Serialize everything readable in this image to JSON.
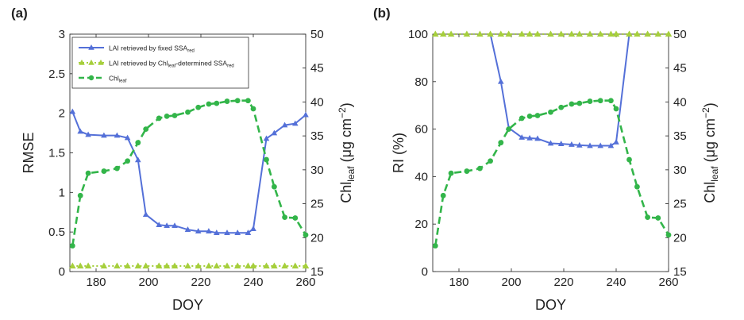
{
  "colors": {
    "blue": "#5470d8",
    "green_dash": "#33b54a",
    "green_tri": "#a6cf3c",
    "axis": "#333333"
  },
  "chart_data": [
    {
      "type": "line",
      "panel_label": "(a)",
      "xlabel": "DOY",
      "ylabel_left": "RMSE",
      "ylabel_right_main": "Chl",
      "ylabel_right_sub": "leaf",
      "ylabel_right_unit": " (μg cm",
      "ylabel_right_exp": "−2",
      "ylabel_right_close": ")",
      "xlim": [
        170,
        260
      ],
      "ylim_left": [
        0,
        3
      ],
      "ylim_right": [
        15,
        50
      ],
      "xticks": [
        180,
        200,
        220,
        240,
        260
      ],
      "yticks_left": [
        0,
        0.5,
        1,
        1.5,
        2,
        2.5,
        3
      ],
      "yticks_left_labels": [
        "0",
        "0.5",
        "1",
        "1.5",
        "2",
        "2.5",
        "3"
      ],
      "yticks_right": [
        15,
        20,
        25,
        30,
        35,
        40,
        45,
        50
      ],
      "legend": {
        "position": "top-left",
        "entries": [
          {
            "main": "LAI retrieved by fixed SSA",
            "sub": "red",
            "rest": ""
          },
          {
            "main": "LAI retrieved by Chl",
            "sub": "leaf",
            "rest": "-determined SSA",
            "sub2": "red"
          },
          {
            "main": "Chl",
            "sub": "leaf",
            "rest": ""
          }
        ]
      },
      "series": [
        {
          "name": "LAI retrieved by fixed SSAred",
          "axis": "left",
          "x": [
            171,
            174,
            177,
            183,
            188,
            192,
            196,
            199,
            204,
            207,
            210,
            215,
            219,
            223,
            226,
            230,
            234,
            238,
            240,
            245,
            248,
            252,
            256,
            260
          ],
          "y": [
            2.02,
            1.77,
            1.73,
            1.72,
            1.72,
            1.69,
            1.41,
            0.72,
            0.59,
            0.58,
            0.58,
            0.53,
            0.51,
            0.51,
            0.49,
            0.49,
            0.49,
            0.49,
            0.54,
            1.68,
            1.75,
            1.85,
            1.87,
            1.98
          ]
        },
        {
          "name": "LAI retrieved by Chleaf-determined SSAred",
          "axis": "left",
          "x": [
            171,
            174,
            177,
            183,
            188,
            192,
            196,
            199,
            204,
            207,
            210,
            215,
            219,
            223,
            226,
            230,
            234,
            238,
            240,
            245,
            248,
            252,
            256,
            260
          ],
          "y": [
            0.07,
            0.07,
            0.07,
            0.07,
            0.07,
            0.07,
            0.07,
            0.07,
            0.07,
            0.07,
            0.07,
            0.07,
            0.07,
            0.07,
            0.07,
            0.07,
            0.07,
            0.07,
            0.07,
            0.07,
            0.07,
            0.07,
            0.07,
            0.07
          ]
        },
        {
          "name": "Chleaf",
          "axis": "right",
          "x": [
            171,
            174,
            177,
            183,
            188,
            192,
            196,
            199,
            204,
            207,
            210,
            215,
            219,
            223,
            226,
            230,
            234,
            238,
            240,
            245,
            248,
            252,
            256,
            260
          ],
          "y": [
            18.8,
            26.2,
            29.5,
            29.8,
            30.2,
            31.3,
            34.0,
            36.0,
            37.6,
            37.9,
            38.0,
            38.5,
            39.2,
            39.7,
            39.8,
            40.1,
            40.2,
            40.2,
            39.0,
            31.5,
            27.5,
            23.0,
            22.9,
            20.4
          ]
        }
      ]
    },
    {
      "type": "line",
      "panel_label": "(b)",
      "xlabel": "DOY",
      "ylabel_left": "RI (%)",
      "ylabel_right_main": "Chl",
      "ylabel_right_sub": "leaf",
      "ylabel_right_unit": " (μg cm",
      "ylabel_right_exp": "−2",
      "ylabel_right_close": ")",
      "xlim": [
        170,
        260
      ],
      "ylim_left": [
        0,
        100
      ],
      "ylim_right": [
        15,
        50
      ],
      "xticks": [
        180,
        200,
        220,
        240,
        260
      ],
      "yticks_left": [
        0,
        20,
        40,
        60,
        80,
        100
      ],
      "yticks_left_labels": [
        "0",
        "20",
        "40",
        "60",
        "80",
        "100"
      ],
      "yticks_right": [
        15,
        20,
        25,
        30,
        35,
        40,
        45,
        50
      ],
      "series": [
        {
          "name": "LAI retrieved by fixed SSAred",
          "axis": "left",
          "x": [
            192,
            196,
            199,
            204,
            207,
            210,
            215,
            219,
            223,
            226,
            230,
            234,
            238,
            240,
            245
          ],
          "y": [
            100,
            80,
            60.5,
            56.5,
            56.2,
            56.0,
            54.0,
            53.8,
            53.5,
            53.2,
            53.0,
            53.0,
            53.0,
            54.5,
            100
          ]
        },
        {
          "name": "LAI retrieved by Chleaf-determined SSAred",
          "axis": "left",
          "x": [
            171,
            174,
            177,
            183,
            188,
            192,
            196,
            199,
            204,
            207,
            210,
            215,
            219,
            223,
            226,
            230,
            234,
            238,
            240,
            245,
            248,
            252,
            256,
            260
          ],
          "y": [
            100,
            100,
            100,
            100,
            100,
            100,
            100,
            100,
            100,
            100,
            100,
            100,
            100,
            100,
            100,
            100,
            100,
            100,
            100,
            100,
            100,
            100,
            100,
            100
          ]
        },
        {
          "name": "Chleaf",
          "axis": "right",
          "x": [
            171,
            174,
            177,
            183,
            188,
            192,
            196,
            199,
            204,
            207,
            210,
            215,
            219,
            223,
            226,
            230,
            234,
            238,
            240,
            245,
            248,
            252,
            256,
            260
          ],
          "y": [
            18.8,
            26.2,
            29.5,
            29.8,
            30.2,
            31.3,
            34.0,
            36.0,
            37.6,
            37.9,
            38.0,
            38.5,
            39.2,
            39.7,
            39.8,
            40.1,
            40.2,
            40.2,
            39.0,
            31.5,
            27.5,
            23.0,
            22.9,
            20.4
          ]
        }
      ]
    }
  ]
}
